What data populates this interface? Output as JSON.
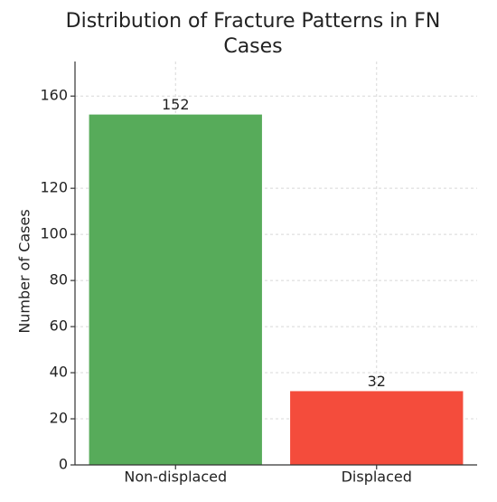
{
  "chart_data": {
    "type": "bar",
    "title": "Distribution of Fracture Patterns in FN Cases",
    "y_label": "Number of Cases",
    "categories": [
      "Non-displaced",
      "Displaced"
    ],
    "series": [
      {
        "name": "Cases",
        "values": [
          152,
          32
        ],
        "colors": [
          "#57ab5a",
          "#f44c3c"
        ]
      }
    ],
    "ylim": [
      0,
      175
    ],
    "yticks": [
      0,
      20,
      40,
      60,
      80,
      100,
      120,
      160
    ],
    "grid": true
  }
}
